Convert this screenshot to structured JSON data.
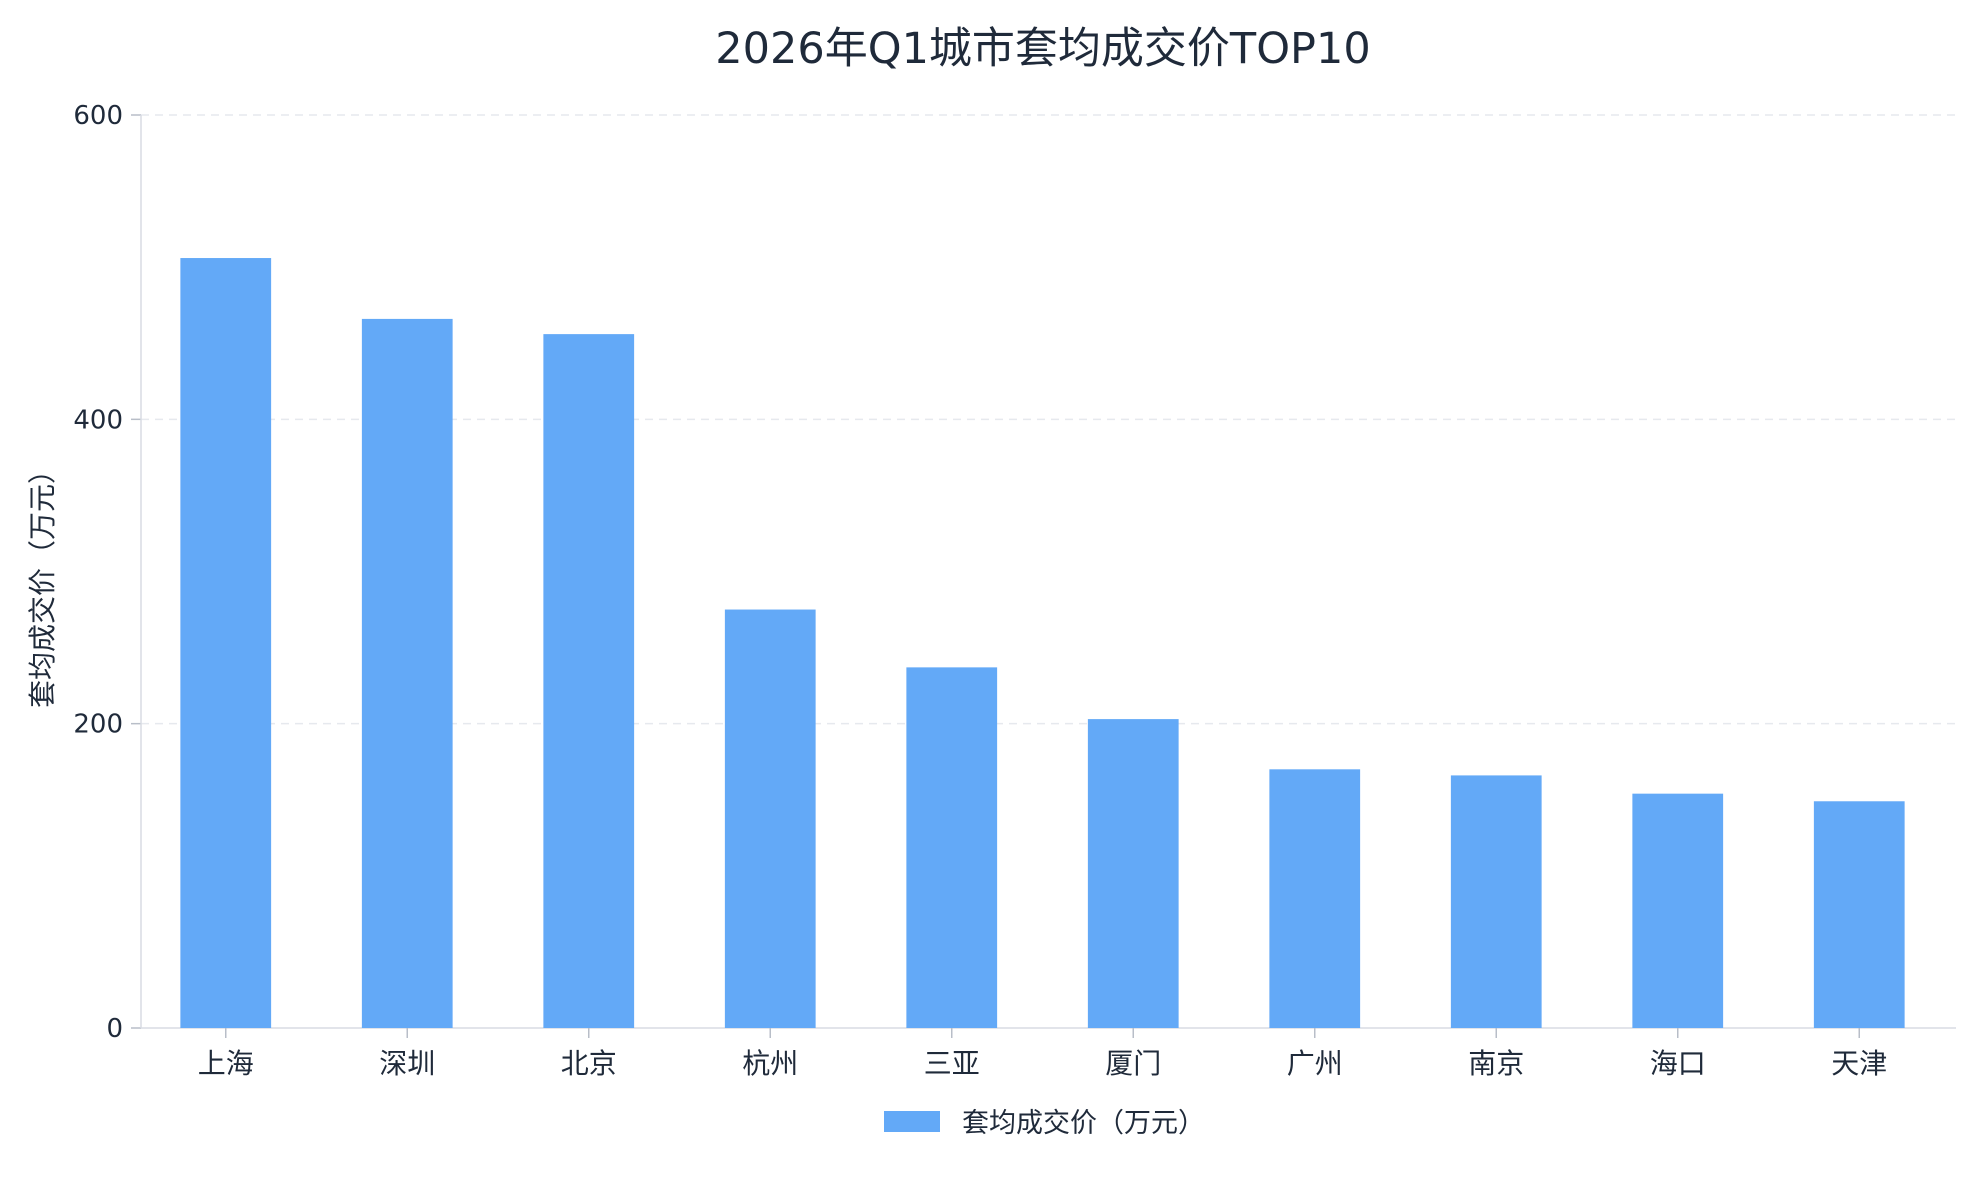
{
  "chart_data": {
    "type": "bar",
    "title": "2026年Q1城市套均成交价TOP10",
    "ylabel": "套均成交价（万元）",
    "xlabel": "",
    "categories": [
      "上海",
      "深圳",
      "北京",
      "杭州",
      "三亚",
      "厦门",
      "广州",
      "南京",
      "海口",
      "天津"
    ],
    "series": [
      {
        "name": "套均成交价（万元）",
        "values": [
          506,
          466,
          456,
          275,
          237,
          203,
          170,
          166,
          154,
          149
        ],
        "color": "#63a9f7"
      }
    ],
    "ylim": [
      0,
      600
    ],
    "yticks": [
      "0",
      "200",
      "400",
      "600"
    ],
    "grid": true,
    "legend": "bottom-center"
  }
}
